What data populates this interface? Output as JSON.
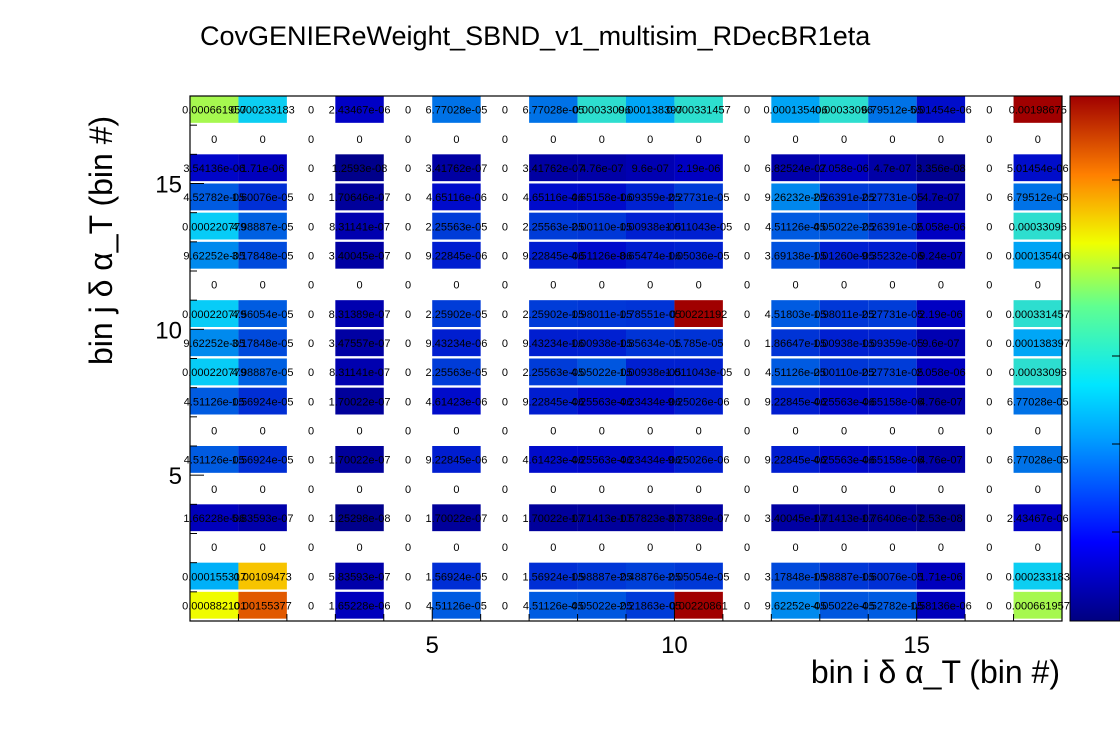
{
  "chart_data": {
    "type": "heatmap",
    "title": "CovGENIEReWeight_SBND_v1_multisim_RDecBR1eta",
    "xlabel": "bin i δ α_T (bin #)",
    "ylabel": "bin j δ α_T (bin #)",
    "x_ticks": [
      "5",
      "10",
      "15"
    ],
    "y_ticks": [
      "5",
      "10",
      "15"
    ],
    "x_range": [
      0,
      18
    ],
    "y_range": [
      0,
      18
    ],
    "n_bins": 18,
    "colorbar": true,
    "rows": [
      {
        "bin": 1,
        "cells": [
          "0.000882101",
          "0.00155377",
          "0",
          "1.65228e-06",
          "0",
          "4.51126e-05",
          "0",
          "4.51126e-05",
          "4.05022e-05",
          "2.21863e-05",
          "0.00220861",
          "0",
          "9.62252e-05",
          "4.05022e-05",
          "4.52782e-05",
          "1.58136e-06",
          "0",
          "0.000661957"
        ]
      },
      {
        "bin": 2,
        "cells": [
          "0.000155317",
          "0.00109473",
          "0",
          "5.83593e-07",
          "0",
          "1.56924e-05",
          "0",
          "1.56924e-05",
          "1.98887e-05",
          "2.48876e-05",
          "2.05054e-05",
          "0",
          "3.17848e-05",
          "1.98887e-05",
          "1.60076e-05",
          "1.71e-06",
          "0",
          "0.000233183"
        ]
      },
      {
        "bin": 3,
        "cells": [
          "0",
          "0",
          "0",
          "0",
          "0",
          "0",
          "0",
          "0",
          "0",
          "0",
          "0",
          "0",
          "0",
          "0",
          "0",
          "0",
          "0",
          "0"
        ]
      },
      {
        "bin": 4,
        "cells": [
          "1.66228e-06",
          "5.83593e-07",
          "0",
          "1.25298e-08",
          "0",
          "1.70022e-07",
          "0",
          "1.70022e-07",
          "1.71413e-07",
          "1.57823e-07",
          "3.37389e-07",
          "0",
          "3.40045e-07",
          "1.71413e-07",
          "1.76406e-07",
          "2.53e-08",
          "0",
          "2.43467e-06"
        ]
      },
      {
        "bin": 5,
        "cells": [
          "0",
          "0",
          "0",
          "0",
          "0",
          "0",
          "0",
          "0",
          "0",
          "0",
          "0",
          "0",
          "0",
          "0",
          "0",
          "0",
          "0",
          "0"
        ]
      },
      {
        "bin": 6,
        "cells": [
          "4.51126e-05",
          "1.56924e-05",
          "0",
          "1.70022e-07",
          "0",
          "9.22845e-06",
          "0",
          "4.61423e-06",
          "4.25563e-06",
          "4.23434e-06",
          "9.25026e-06",
          "0",
          "9.22845e-06",
          "4.25563e-06",
          "4.65158e-06",
          "4.76e-07",
          "0",
          "6.77028e-05"
        ]
      },
      {
        "bin": 7,
        "cells": [
          "0",
          "0",
          "0",
          "0",
          "0",
          "0",
          "0",
          "0",
          "0",
          "0",
          "0",
          "0",
          "0",
          "0",
          "0",
          "0",
          "0",
          "0"
        ]
      },
      {
        "bin": 8,
        "cells": [
          "4.51126e-05",
          "1.56924e-05",
          "0",
          "1.70022e-07",
          "0",
          "4.61423e-06",
          "0",
          "9.22845e-06",
          "4.25563e-06",
          "4.23434e-06",
          "9.25026e-06",
          "0",
          "9.22845e-06",
          "4.25563e-06",
          "4.65158e-06",
          "4.76e-07",
          "0",
          "6.77028e-05"
        ]
      },
      {
        "bin": 9,
        "cells": [
          "0.000220779",
          "4.98887e-05",
          "0",
          "8.31141e-07",
          "0",
          "2.25563e-05",
          "0",
          "2.25563e-05",
          "4.05022e-05",
          "1.00938e-05",
          "1.011043e-05",
          "0",
          "4.51126e-05",
          "2.00110e-05",
          "2.27731e-05",
          "2.058e-06",
          "0",
          "0.00033096"
        ]
      },
      {
        "bin": 10,
        "cells": [
          "9.62252e-05",
          "3.17848e-05",
          "0",
          "3.47557e-07",
          "0",
          "9.43234e-06",
          "0",
          "9.43234e-06",
          "1.00938e-05",
          "1.85634e-05",
          "1.785e-05",
          "0",
          "1.86647e-05",
          "1.00938e-05",
          "1.09359e-05",
          "9.6e-07",
          "0",
          "0.000138397"
        ]
      },
      {
        "bin": 11,
        "cells": [
          "0.000220779",
          "4.56054e-05",
          "0",
          "8.31389e-07",
          "0",
          "2.25902e-05",
          "0",
          "2.25902e-05",
          "1.98011e-05",
          "1.78551e-05",
          "0.00221192",
          "0",
          "4.51803e-05",
          "1.98011e-05",
          "2.27731e-05",
          "2.19e-06",
          "0",
          "0.000331457"
        ]
      },
      {
        "bin": 12,
        "cells": [
          "0",
          "0",
          "0",
          "0",
          "0",
          "0",
          "0",
          "0",
          "0",
          "0",
          "0",
          "0",
          "0",
          "0",
          "0",
          "0",
          "0",
          "0"
        ]
      },
      {
        "bin": 13,
        "cells": [
          "9.62252e-05",
          "3.17848e-05",
          "0",
          "3.40045e-07",
          "0",
          "9.22845e-06",
          "0",
          "9.22845e-06",
          "4.51126e-06",
          "8.65474e-06",
          "1.05036e-05",
          "0",
          "3.69138e-05",
          "1.01260e-05",
          "9.35232e-06",
          "9.24e-07",
          "0",
          "0.000135406"
        ]
      },
      {
        "bin": 14,
        "cells": [
          "0.000220779",
          "4.98887e-05",
          "0",
          "8.31141e-07",
          "0",
          "2.25563e-05",
          "0",
          "2.25563e-05",
          "2.00110e-05",
          "1.00938e-05",
          "1.011043e-05",
          "0",
          "4.51126e-05",
          "4.05022e-05",
          "2.26391e-05",
          "2.058e-06",
          "0",
          "0.00033096"
        ]
      },
      {
        "bin": 15,
        "cells": [
          "4.52782e-05",
          "1.60076e-05",
          "0",
          "1.70646e-07",
          "0",
          "4.65116e-06",
          "0",
          "4.65116e-06",
          "4.65158e-06",
          "1.09359e-05",
          "2.27731e-05",
          "0",
          "9.26232e-05",
          "2.26391e-05",
          "2.27731e-05",
          "4.7e-07",
          "0",
          "6.79512e-05"
        ]
      },
      {
        "bin": 16,
        "cells": [
          "3.54136e-06",
          "1.71e-06",
          "0",
          "1.2593e-08",
          "0",
          "3.41762e-07",
          "0",
          "3.41762e-07",
          "4.76e-07",
          "9.6e-07",
          "2.19e-06",
          "0",
          "6.82524e-07",
          "2.058e-06",
          "4.7e-07",
          "3.356e-08",
          "0",
          "5.01454e-06"
        ]
      },
      {
        "bin": 17,
        "cells": [
          "0",
          "0",
          "0",
          "0",
          "0",
          "0",
          "0",
          "0",
          "0",
          "0",
          "0",
          "0",
          "0",
          "0",
          "0",
          "0",
          "0",
          "0"
        ]
      },
      {
        "bin": 18,
        "cells": [
          "0.000661957",
          "0.000233183",
          "0",
          "2.43467e-06",
          "0",
          "6.77028e-05",
          "0",
          "6.77028e-05",
          "0.00033096",
          "0.000138397",
          "0.000331457",
          "0",
          "0.000135406",
          "0.00033096",
          "6.79512e-05",
          "5.01454e-06",
          "0",
          "0.00198675"
        ]
      }
    ]
  }
}
